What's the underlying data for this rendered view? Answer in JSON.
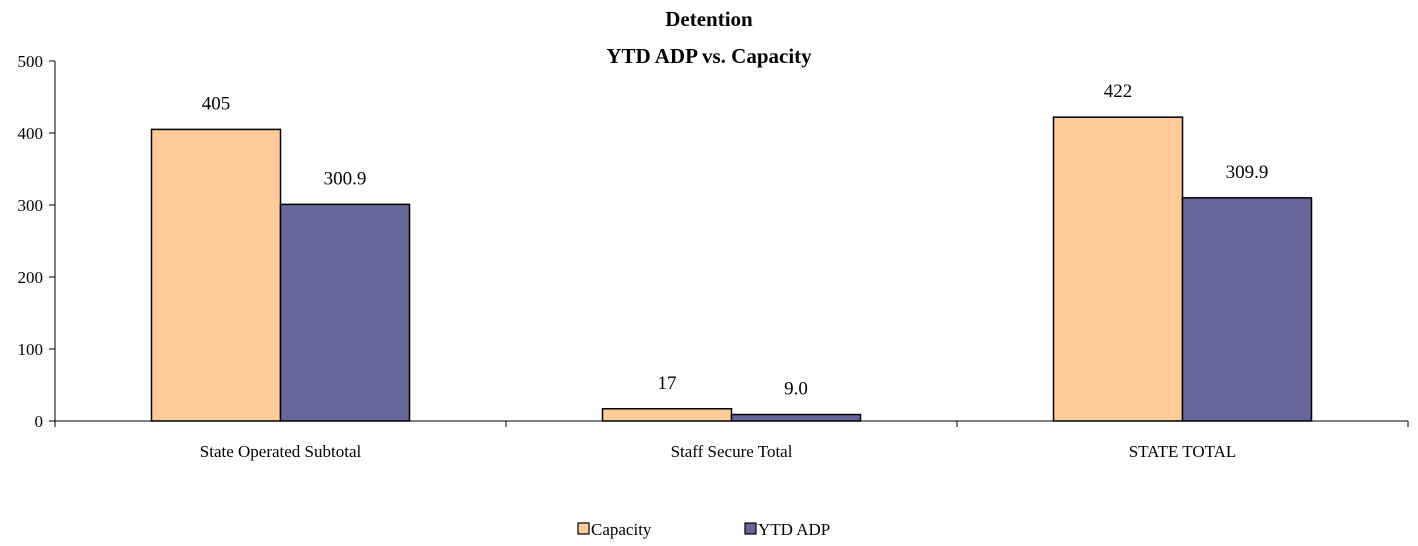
{
  "chart_data": {
    "type": "bar",
    "title_lines": [
      "Detention",
      "YTD ADP vs. Capacity"
    ],
    "xlabel": "",
    "ylabel": "",
    "categories": [
      "State Operated Subtotal",
      "Staff Secure Total",
      "STATE TOTAL"
    ],
    "series": [
      {
        "name": "Capacity",
        "values": [
          405,
          17,
          422
        ],
        "labels": [
          "405",
          "17",
          "422"
        ],
        "color": "#FFCC99"
      },
      {
        "name": "YTD ADP",
        "values": [
          300.9,
          9.0,
          309.9
        ],
        "labels": [
          "300.9",
          "9.0",
          "309.9"
        ],
        "color": "#666699"
      }
    ],
    "ylim": [
      0,
      500
    ],
    "yticks": [
      0,
      100,
      200,
      300,
      400,
      500
    ],
    "ytick_labels": [
      "0",
      "100",
      "200",
      "300",
      "400",
      "500"
    ],
    "grid": false,
    "legend_position": "bottom"
  }
}
